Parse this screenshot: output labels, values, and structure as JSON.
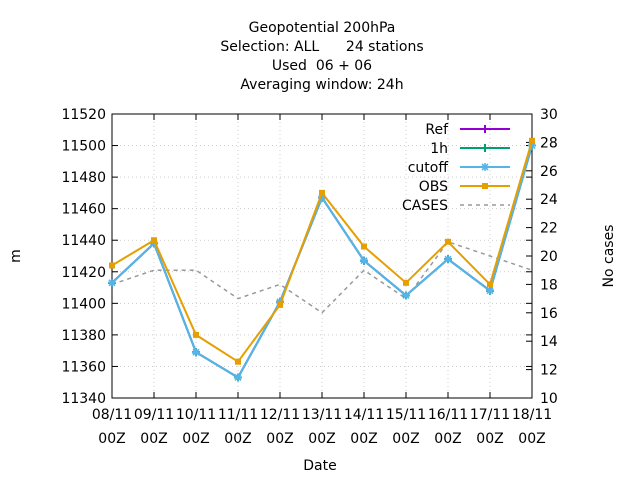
{
  "chart_data": {
    "type": "line",
    "title_lines": [
      "Geopotential 200hPa",
      "Selection: ALL      24 stations",
      "Used  06 + 06",
      "Averaging window: 24h"
    ],
    "xlabel": "Date",
    "ylabel": "m",
    "y2label": "No cases",
    "categories": [
      [
        "08/11",
        "00Z"
      ],
      [
        "09/11",
        "00Z"
      ],
      [
        "10/11",
        "00Z"
      ],
      [
        "11/11",
        "00Z"
      ],
      [
        "12/11",
        "00Z"
      ],
      [
        "13/11",
        "00Z"
      ],
      [
        "14/11",
        "00Z"
      ],
      [
        "15/11",
        "00Z"
      ],
      [
        "16/11",
        "00Z"
      ],
      [
        "17/11",
        "00Z"
      ],
      [
        "18/11",
        "00Z"
      ]
    ],
    "ylim": [
      11340,
      11520
    ],
    "yticks": [
      11340,
      11360,
      11380,
      11400,
      11420,
      11440,
      11460,
      11480,
      11500,
      11520
    ],
    "y2lim": [
      10,
      30
    ],
    "y2ticks": [
      10,
      12,
      14,
      16,
      18,
      20,
      22,
      24,
      26,
      28,
      30
    ],
    "legend_position": "top-right",
    "series": [
      {
        "name": "Ref",
        "axis": "y",
        "color": "#9400d3",
        "style": "solid",
        "marker": "plus",
        "values": [
          11413,
          11438,
          11369,
          11353,
          11401,
          11467,
          11427,
          11405,
          11428,
          11408,
          11500
        ]
      },
      {
        "name": "1h",
        "axis": "y",
        "color": "#009e73",
        "style": "solid",
        "marker": "plus",
        "values": [
          11413,
          11438,
          11369,
          11353,
          11401,
          11467,
          11427,
          11405,
          11428,
          11408,
          11500
        ]
      },
      {
        "name": "cutoff",
        "axis": "y",
        "color": "#56b4e9",
        "style": "solid",
        "marker": "star",
        "values": [
          11413,
          11438,
          11369,
          11353,
          11401,
          11467,
          11427,
          11405,
          11428,
          11408,
          11500
        ]
      },
      {
        "name": "OBS",
        "axis": "y",
        "color": "#e69f00",
        "style": "solid",
        "marker": "square",
        "values": [
          11424,
          11440,
          11380,
          11363,
          11399,
          11470,
          11436,
          11413,
          11439,
          11412,
          11503
        ]
      },
      {
        "name": "CASES",
        "axis": "y2",
        "color": "#999999",
        "style": "dashed",
        "marker": "none",
        "values": [
          18,
          19,
          19,
          17,
          18,
          16,
          19,
          17,
          21,
          20,
          19
        ]
      }
    ]
  }
}
